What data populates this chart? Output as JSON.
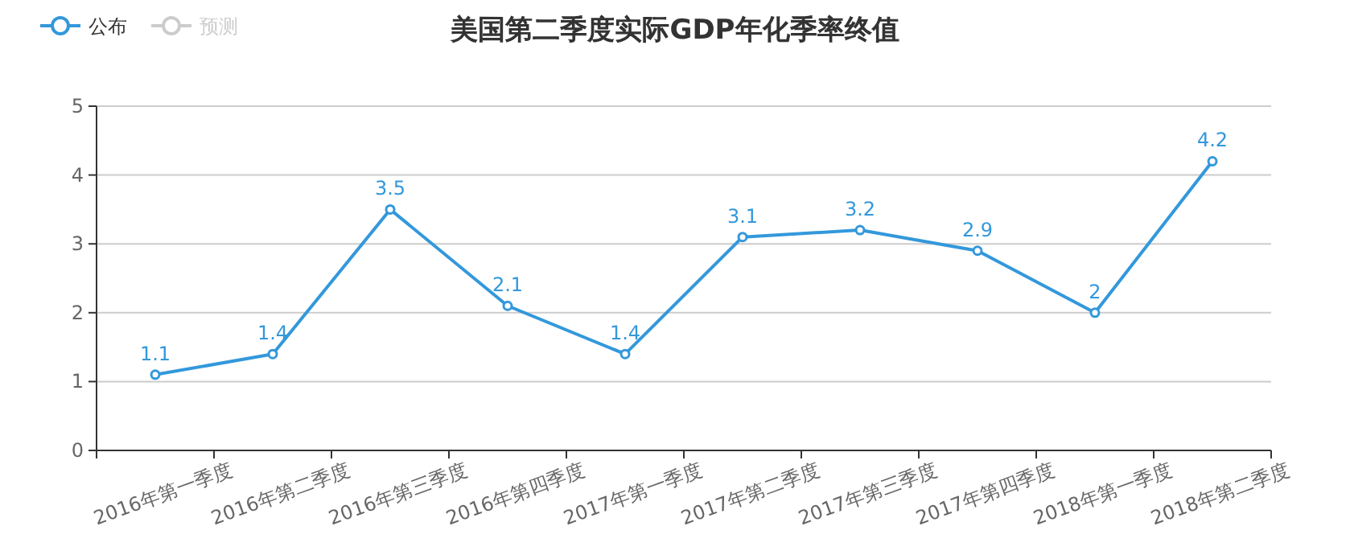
{
  "chart_data": {
    "type": "line",
    "title": "美国第二季度实际GDP年化季率终值",
    "categories": [
      "2016年第一季度",
      "2016年第二季度",
      "2016年第三季度",
      "2016年第四季度",
      "2017年第一季度",
      "2017年第二季度",
      "2017年第三季度",
      "2017年第四季度",
      "2018年第一季度",
      "2018年第二季度"
    ],
    "series": [
      {
        "name": "公布",
        "color": "#3398db",
        "values": [
          1.1,
          1.4,
          3.5,
          2.1,
          1.4,
          3.1,
          3.2,
          2.9,
          2,
          4.2
        ]
      },
      {
        "name": "预测",
        "color": "#cccccc",
        "values": [
          null,
          null,
          null,
          null,
          null,
          null,
          null,
          null,
          null,
          null
        ]
      }
    ],
    "ylim": [
      0,
      5
    ],
    "yticks": [
      0,
      1,
      2,
      3,
      4,
      5
    ],
    "grid": "y",
    "legend": "top left",
    "marker": "circle",
    "line_style": "solid",
    "data_labels": true
  }
}
